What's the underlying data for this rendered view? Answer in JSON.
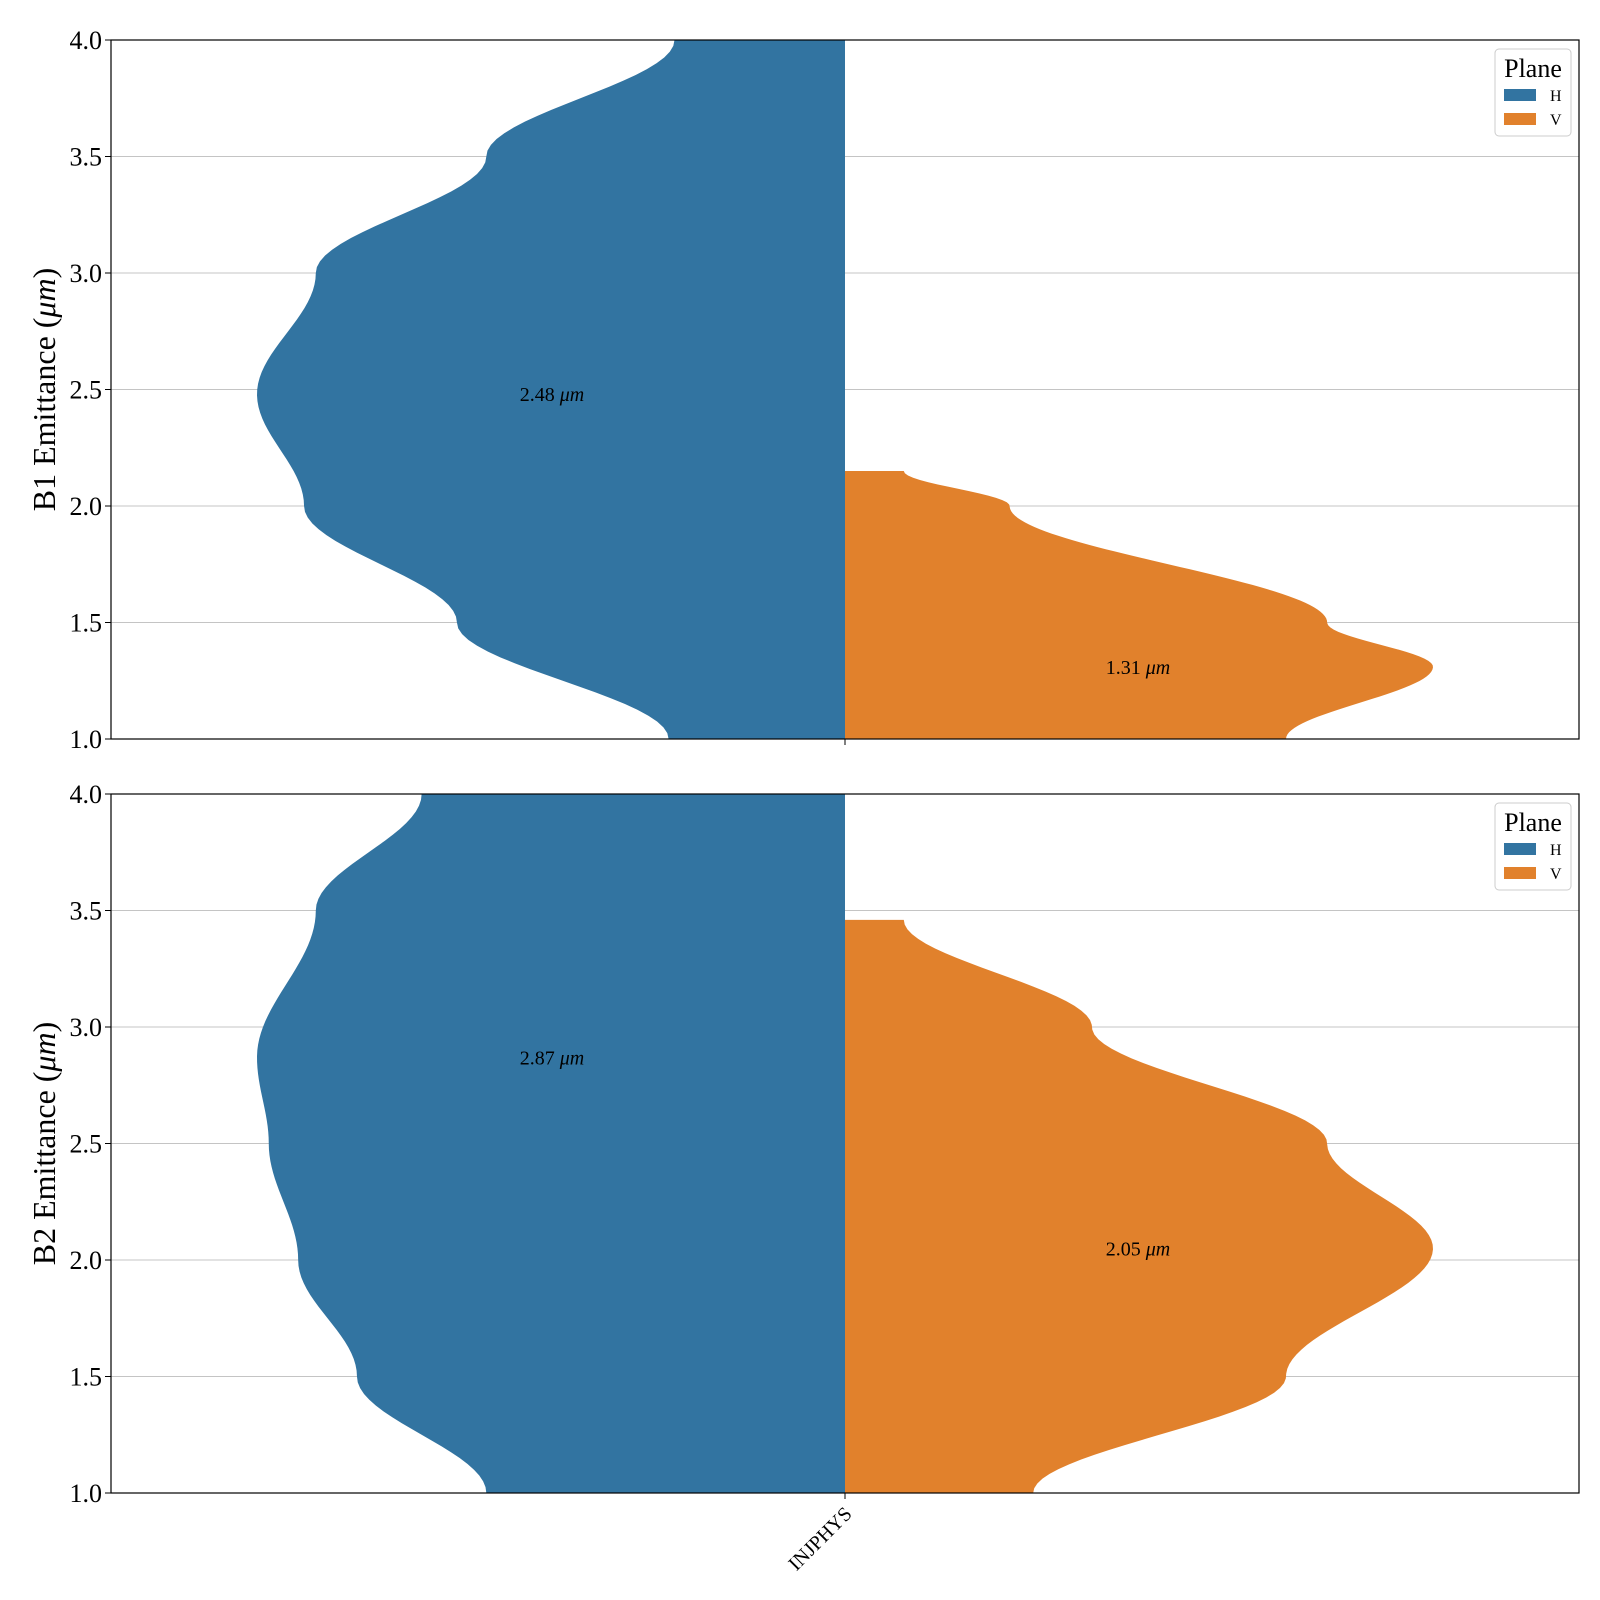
{
  "chart_data": [
    {
      "type": "violin",
      "ylabel": "B1 Emittance ($\\mu m$)",
      "ylabel_text": "B1 Emittance (",
      "ylabel_math": "μm",
      "ylabel_close": ")",
      "ylim": [
        1.0,
        4.0
      ],
      "yticks": [
        "1.0",
        "1.5",
        "2.0",
        "2.5",
        "3.0",
        "3.5",
        "4.0"
      ],
      "categories": [
        "INJPHYS"
      ],
      "show_xticklabels": false,
      "grid": "y",
      "legend": {
        "title": "Plane",
        "placement": "top-right",
        "entries": [
          "H",
          "V"
        ]
      },
      "series": [
        {
          "name": "H",
          "side": "left",
          "color": "#3274a1",
          "median_label_value": "2.48",
          "median_label_unit": "μm",
          "median": 2.48,
          "width_ratio": 1.0,
          "profile": {
            "y": [
              1.0,
              1.5,
              2.0,
              2.48,
              3.0,
              3.5,
              4.0
            ],
            "w": [
              0.3,
              0.66,
              0.92,
              1.0,
              0.9,
              0.61,
              0.29
            ]
          }
        },
        {
          "name": "V",
          "side": "right",
          "color": "#e1812c",
          "median_label_value": "1.31",
          "median_label_unit": "μm",
          "median": 1.31,
          "width_ratio": 1.0,
          "profile": {
            "y": [
              1.0,
              1.31,
              1.5,
              2.0,
              2.15
            ],
            "w": [
              0.75,
              1.0,
              0.82,
              0.28,
              0.1
            ]
          }
        }
      ]
    },
    {
      "type": "violin",
      "ylabel": "B2 Emittance ($\\mu m$)",
      "ylabel_text": "B2 Emittance (",
      "ylabel_math": "μm",
      "ylabel_close": ")",
      "ylim": [
        1.0,
        4.0
      ],
      "yticks": [
        "1.0",
        "1.5",
        "2.0",
        "2.5",
        "3.0",
        "3.5",
        "4.0"
      ],
      "categories": [
        "INJPHYS"
      ],
      "show_xticklabels": true,
      "grid": "y",
      "legend": {
        "title": "Plane",
        "placement": "top-right",
        "entries": [
          "H",
          "V"
        ]
      },
      "series": [
        {
          "name": "H",
          "side": "left",
          "color": "#3274a1",
          "median_label_value": "2.87",
          "median_label_unit": "μm",
          "median": 2.87,
          "width_ratio": 1.0,
          "profile": {
            "y": [
              1.0,
              1.5,
              2.0,
              2.5,
              2.87,
              3.5,
              4.0
            ],
            "w": [
              0.61,
              0.83,
              0.93,
              0.98,
              1.0,
              0.9,
              0.72
            ]
          }
        },
        {
          "name": "V",
          "side": "right",
          "color": "#e1812c",
          "median_label_value": "2.05",
          "median_label_unit": "μm",
          "median": 2.05,
          "width_ratio": 1.0,
          "profile": {
            "y": [
              1.0,
              1.5,
              2.05,
              2.5,
              3.0,
              3.46
            ],
            "w": [
              0.32,
              0.75,
              1.0,
              0.82,
              0.42,
              0.1
            ]
          }
        }
      ]
    }
  ]
}
